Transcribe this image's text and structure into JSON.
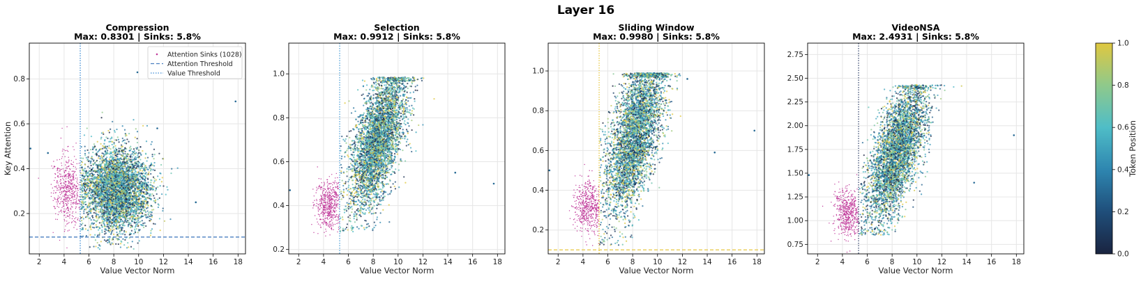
{
  "figure": {
    "suptitle": "Layer 16",
    "colorbar": {
      "label": "Token Position",
      "ticks": [
        "0.0",
        "0.2",
        "0.4",
        "0.6",
        "0.8",
        "1.0"
      ],
      "colors": [
        "#1a2440",
        "#1f4e7a",
        "#2e86b0",
        "#4fbdc7",
        "#8fc98b",
        "#e0c840"
      ]
    }
  },
  "chart_data": [
    {
      "type": "scatter",
      "title": "Compression",
      "subtitle": "Max: 0.8301 | Sinks: 5.8%",
      "xlabel": "Value Vector Norm",
      "ylabel": "Key Attention",
      "xlim": [
        1.2,
        18.6
      ],
      "ylim": [
        0.02,
        0.96
      ],
      "xticks": [
        2,
        4,
        6,
        8,
        10,
        12,
        14,
        16,
        18
      ],
      "yticks": [
        0.2,
        0.4,
        0.6,
        0.8
      ],
      "grid": true,
      "cloud": {
        "cx": 8.3,
        "cy": 0.31,
        "sx": 1.35,
        "sy": 0.095,
        "slope": 0.0,
        "ymin": 0.04,
        "ymax": 0.72,
        "xmin": 5.35
      },
      "sinks": {
        "count": 1028,
        "color": "#c0399a",
        "cx": 4.3,
        "cy": 0.3,
        "sx": 0.55,
        "sy": 0.075
      },
      "outliers": [
        [
          9.9,
          0.83
        ],
        [
          17.8,
          0.7
        ],
        [
          14.6,
          0.25
        ],
        [
          11.5,
          0.58
        ],
        [
          1.3,
          0.49
        ],
        [
          2.7,
          0.47
        ]
      ],
      "thresholds": {
        "attention": 0.095,
        "value": 5.3,
        "attention_color": "#4a7fc0",
        "value_color": "#3a8ad4"
      },
      "legend": {
        "placement": "top-right",
        "entries": [
          "Attention Sinks (1028)",
          "Attention Threshold",
          "Value Threshold"
        ]
      }
    },
    {
      "type": "scatter",
      "title": "Selection",
      "subtitle": "Max: 0.9912 | Sinks: 5.8%",
      "xlabel": "Value Vector Norm",
      "xlim": [
        1.2,
        18.6
      ],
      "ylim": [
        0.18,
        1.14
      ],
      "xticks": [
        2,
        4,
        6,
        8,
        10,
        12,
        14,
        16,
        18
      ],
      "yticks": [
        0.2,
        0.4,
        0.6,
        0.8,
        1.0
      ],
      "grid": true,
      "cloud": {
        "cx": 8.4,
        "cy": 0.7,
        "sx": 1.15,
        "sy": 0.13,
        "slope": 0.085,
        "ymin": 0.28,
        "ymax": 0.985,
        "xmin": 5.35
      },
      "sinks": {
        "count": 1028,
        "color": "#c0399a",
        "cx": 4.4,
        "cy": 0.4,
        "sx": 0.5,
        "sy": 0.055
      },
      "outliers": [
        [
          14.6,
          0.55
        ],
        [
          17.7,
          0.5
        ],
        [
          1.3,
          0.47
        ]
      ],
      "thresholds": {
        "value": 5.3,
        "value_color": "#4fa0d8"
      }
    },
    {
      "type": "scatter",
      "title": "Sliding Window",
      "subtitle": "Max: 0.9980 | Sinks: 5.8%",
      "xlabel": "Value Vector Norm",
      "xlim": [
        1.2,
        18.6
      ],
      "ylim": [
        0.08,
        1.14
      ],
      "xticks": [
        2,
        4,
        6,
        8,
        10,
        12,
        14,
        16,
        18
      ],
      "yticks": [
        0.2,
        0.4,
        0.6,
        0.8,
        1.0
      ],
      "grid": true,
      "cloud": {
        "cx": 8.2,
        "cy": 0.68,
        "sx": 1.15,
        "sy": 0.16,
        "slope": 0.1,
        "ymin": 0.12,
        "ymax": 0.99,
        "xmin": 5.35
      },
      "sinks": {
        "count": 1028,
        "color": "#c0399a",
        "cx": 4.4,
        "cy": 0.32,
        "sx": 0.55,
        "sy": 0.065
      },
      "outliers": [
        [
          14.6,
          0.59
        ],
        [
          17.8,
          0.7
        ],
        [
          12.4,
          0.96
        ],
        [
          1.3,
          0.5
        ]
      ],
      "thresholds": {
        "attention": 0.1,
        "value": 5.3,
        "attention_color": "#e8c840",
        "value_color": "#e8c840"
      }
    },
    {
      "type": "scatter",
      "title": "VideoNSA",
      "subtitle": "Max: 2.4931 | Sinks: 5.8%",
      "xlabel": "Value Vector Norm",
      "xlim": [
        1.2,
        18.6
      ],
      "ylim": [
        0.65,
        2.87
      ],
      "xticks": [
        2,
        4,
        6,
        8,
        10,
        12,
        14,
        16,
        18
      ],
      "yticks": [
        0.75,
        1.0,
        1.25,
        1.5,
        1.75,
        2.0,
        2.25,
        2.5,
        2.75
      ],
      "grid": true,
      "cloud": {
        "cx": 8.4,
        "cy": 1.72,
        "sx": 1.15,
        "sy": 0.28,
        "slope": 0.2,
        "ymin": 0.85,
        "ymax": 2.43,
        "xmin": 5.35
      },
      "sinks": {
        "count": 1028,
        "color": "#c0399a",
        "cx": 4.4,
        "cy": 1.08,
        "sx": 0.5,
        "sy": 0.13
      },
      "outliers": [
        [
          17.8,
          1.9
        ],
        [
          14.6,
          1.4
        ],
        [
          1.3,
          1.48
        ]
      ],
      "thresholds": {
        "value": 5.3,
        "value_color": "#3a4a70"
      }
    }
  ]
}
